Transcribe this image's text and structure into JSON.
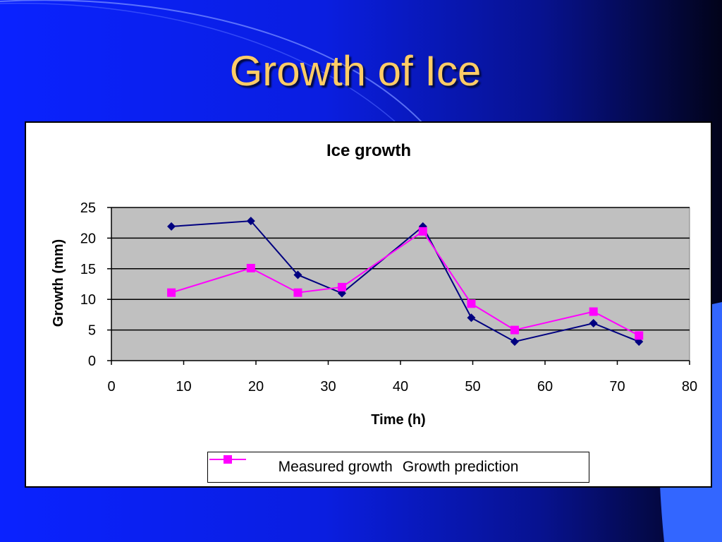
{
  "slide": {
    "title": "Growth of Ice"
  },
  "colors": {
    "title": "#ffcc66",
    "measured": "#000080",
    "prediction": "#ff00ff",
    "plot_area": "#c0c0c0"
  },
  "chart_data": {
    "type": "line",
    "title": "Ice growth",
    "xlabel": "Time (h)",
    "ylabel": "Growth (mm)",
    "xlim": [
      0,
      80
    ],
    "ylim": [
      0,
      25
    ],
    "x_ticks": [
      0,
      10,
      20,
      30,
      40,
      50,
      60,
      70,
      80
    ],
    "y_ticks": [
      0,
      5,
      10,
      15,
      20,
      25
    ],
    "grid": "horizontal",
    "legend_position": "bottom",
    "series": [
      {
        "name": "Measured growth",
        "marker": "diamond",
        "x": [
          8.3,
          19.3,
          25.8,
          31.9,
          43.1,
          49.8,
          55.8,
          66.7,
          73.0
        ],
        "y": [
          21.9,
          22.8,
          14,
          11,
          21.9,
          7,
          3.1,
          6.1,
          3.1
        ]
      },
      {
        "name": "Growth prediction",
        "marker": "square",
        "x": [
          8.3,
          19.3,
          25.8,
          31.9,
          43.1,
          49.8,
          55.8,
          66.7,
          73.0
        ],
        "y": [
          11.1,
          15.1,
          11.1,
          12,
          21.1,
          9.3,
          5,
          8,
          4.1
        ]
      }
    ]
  }
}
